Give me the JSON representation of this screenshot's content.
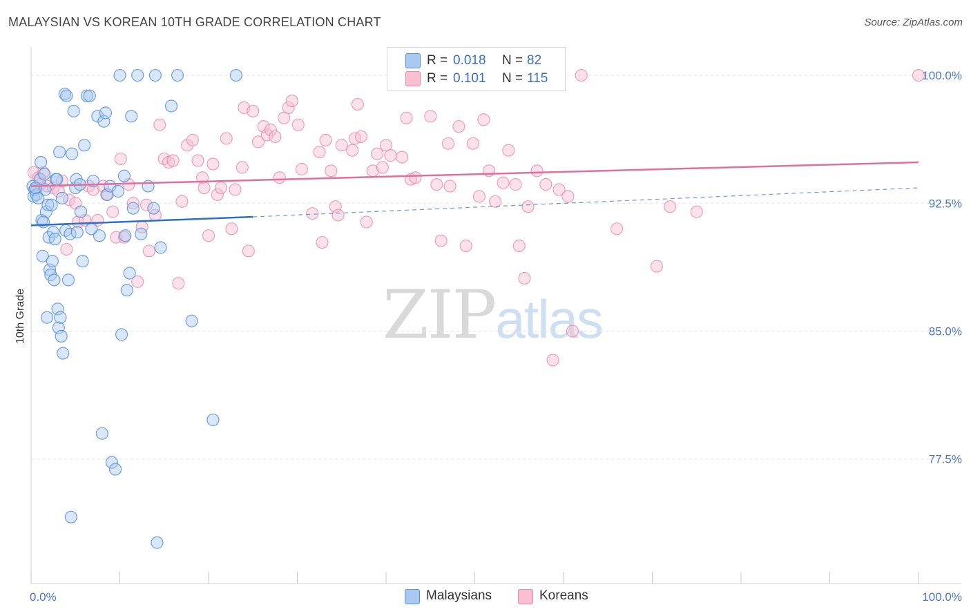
{
  "title": "MALAYSIAN VS KOREAN 10TH GRADE CORRELATION CHART",
  "source": "Source: ZipAtlas.com",
  "watermark": {
    "zip": "ZIP",
    "atlas": "atlas"
  },
  "legend_top": {
    "rows": [
      {
        "r_label": "R =",
        "r_value": "0.018",
        "n_label": "N =",
        "n_value": "82"
      },
      {
        "r_label": "R =",
        "r_value": "0.101",
        "n_label": "N =",
        "n_value": "115"
      }
    ]
  },
  "legend_bottom": {
    "items": [
      {
        "label": "Malaysians"
      },
      {
        "label": "Koreans"
      }
    ]
  },
  "colors": {
    "malaysian_fill": "#a9c9f2",
    "malaysian_stroke": "#5b8fd6",
    "malaysian_line": "#2d6fcc",
    "korean_fill": "#f7bfd0",
    "korean_stroke": "#e98aab",
    "korean_line": "#e0709a",
    "grid": "#e3e3e3",
    "tick_text": "#4a78c4"
  },
  "chart_data": {
    "type": "scatter",
    "title": "MALAYSIAN VS KOREAN 10TH GRADE CORRELATION CHART",
    "xlabel": "",
    "ylabel": "10th Grade",
    "xlim": [
      0,
      100
    ],
    "ylim": [
      70.2,
      101.5
    ],
    "x_tick_labels": [
      "0.0%",
      "100.0%"
    ],
    "y_ticks": [
      {
        "value": 77.5,
        "label": "77.5%"
      },
      {
        "value": 85.0,
        "label": "85.0%"
      },
      {
        "value": 92.5,
        "label": "92.5%"
      },
      {
        "value": 100.0,
        "label": "100.0%"
      }
    ],
    "series": [
      {
        "name": "Malaysians",
        "r": 0.018,
        "n": 82,
        "trend": {
          "x0": 0,
          "y0": 91.2,
          "x1": 25,
          "y1": 91.7,
          "dashed_to_x": 100,
          "dashed_y1": 93.4
        },
        "points": [
          [
            0.2,
            93.5
          ],
          [
            0.3,
            92.9
          ],
          [
            0.4,
            93.3
          ],
          [
            0.6,
            93.0
          ],
          [
            0.8,
            92.8
          ],
          [
            1.0,
            93.9
          ],
          [
            1.2,
            91.5
          ],
          [
            1.3,
            89.4
          ],
          [
            1.5,
            94.2
          ],
          [
            1.6,
            93.3
          ],
          [
            1.7,
            92.0
          ],
          [
            1.8,
            85.8
          ],
          [
            1.9,
            92.4
          ],
          [
            2.0,
            90.5
          ],
          [
            2.1,
            88.6
          ],
          [
            2.2,
            88.3
          ],
          [
            2.3,
            92.4
          ],
          [
            2.4,
            89.1
          ],
          [
            2.5,
            90.8
          ],
          [
            2.6,
            88.0
          ],
          [
            2.7,
            90.4
          ],
          [
            2.8,
            93.9
          ],
          [
            3.0,
            86.3
          ],
          [
            3.1,
            85.2
          ],
          [
            3.2,
            95.5
          ],
          [
            3.3,
            85.8
          ],
          [
            3.4,
            84.7
          ],
          [
            3.6,
            83.7
          ],
          [
            3.8,
            98.9
          ],
          [
            3.9,
            90.9
          ],
          [
            4.0,
            98.8
          ],
          [
            4.2,
            88.0
          ],
          [
            4.4,
            90.7
          ],
          [
            4.6,
            95.4
          ],
          [
            4.8,
            97.9
          ],
          [
            5.0,
            93.4
          ],
          [
            5.1,
            93.9
          ],
          [
            5.2,
            90.8
          ],
          [
            5.5,
            93.6
          ],
          [
            5.6,
            92.0
          ],
          [
            5.8,
            89.1
          ],
          [
            6.0,
            95.9
          ],
          [
            6.3,
            98.8
          ],
          [
            6.6,
            98.8
          ],
          [
            7.0,
            93.8
          ],
          [
            7.5,
            97.6
          ],
          [
            7.7,
            90.6
          ],
          [
            8.0,
            79.0
          ],
          [
            8.2,
            97.3
          ],
          [
            8.4,
            97.8
          ],
          [
            8.6,
            93.0
          ],
          [
            8.9,
            93.5
          ],
          [
            9.1,
            77.3
          ],
          [
            9.5,
            76.9
          ],
          [
            10.0,
            100.0
          ],
          [
            10.2,
            84.8
          ],
          [
            10.5,
            94.1
          ],
          [
            10.6,
            90.6
          ],
          [
            10.8,
            87.4
          ],
          [
            11.1,
            88.4
          ],
          [
            11.3,
            97.6
          ],
          [
            11.5,
            92.2
          ],
          [
            12.0,
            100.0
          ],
          [
            13.2,
            93.5
          ],
          [
            13.8,
            92.2
          ],
          [
            14.0,
            100.0
          ],
          [
            14.2,
            72.6
          ],
          [
            14.6,
            89.9
          ],
          [
            15.8,
            98.2
          ],
          [
            16.5,
            100.0
          ],
          [
            18.1,
            85.6
          ],
          [
            20.5,
            79.8
          ],
          [
            23.1,
            100.0
          ],
          [
            4.5,
            74.1
          ],
          [
            0.5,
            93.4
          ],
          [
            1.1,
            94.9
          ],
          [
            2.9,
            93.9
          ],
          [
            6.8,
            91.0
          ],
          [
            9.8,
            93.2
          ],
          [
            12.4,
            90.7
          ],
          [
            1.4,
            91.4
          ],
          [
            3.5,
            92.8
          ]
        ]
      },
      {
        "name": "Koreans",
        "r": 0.101,
        "n": 115,
        "trend": {
          "x0": 0,
          "y0": 93.5,
          "x1": 100,
          "y1": 94.9
        },
        "points": [
          [
            0.3,
            94.3
          ],
          [
            0.8,
            94.0
          ],
          [
            1.0,
            93.6
          ],
          [
            1.4,
            94.3
          ],
          [
            1.8,
            93.5
          ],
          [
            2.5,
            93.4
          ],
          [
            3.1,
            93.2
          ],
          [
            3.5,
            93.8
          ],
          [
            4.0,
            89.8
          ],
          [
            4.3,
            92.7
          ],
          [
            5.0,
            92.5
          ],
          [
            5.3,
            91.4
          ],
          [
            6.1,
            91.5
          ],
          [
            6.5,
            93.5
          ],
          [
            7.0,
            93.3
          ],
          [
            7.5,
            91.5
          ],
          [
            8.1,
            93.5
          ],
          [
            8.5,
            93.0
          ],
          [
            9.2,
            92.0
          ],
          [
            9.6,
            90.5
          ],
          [
            10.1,
            95.1
          ],
          [
            10.5,
            90.5
          ],
          [
            11.0,
            93.6
          ],
          [
            11.5,
            92.5
          ],
          [
            12.0,
            87.9
          ],
          [
            12.5,
            91.1
          ],
          [
            13.0,
            92.4
          ],
          [
            13.3,
            89.7
          ],
          [
            14.0,
            91.8
          ],
          [
            14.5,
            97.1
          ],
          [
            15.0,
            95.1
          ],
          [
            15.5,
            94.9
          ],
          [
            16.0,
            95.0
          ],
          [
            16.6,
            87.8
          ],
          [
            17.0,
            92.6
          ],
          [
            17.6,
            95.9
          ],
          [
            18.2,
            96.2
          ],
          [
            18.8,
            95.0
          ],
          [
            19.3,
            94.0
          ],
          [
            19.5,
            93.4
          ],
          [
            20.0,
            90.6
          ],
          [
            20.5,
            94.8
          ],
          [
            21.0,
            93.0
          ],
          [
            21.4,
            93.4
          ],
          [
            22.0,
            96.3
          ],
          [
            22.6,
            91.0
          ],
          [
            23.0,
            93.3
          ],
          [
            23.8,
            94.6
          ],
          [
            24.0,
            98.1
          ],
          [
            24.5,
            89.7
          ],
          [
            25.0,
            97.9
          ],
          [
            25.6,
            96.1
          ],
          [
            26.2,
            97.0
          ],
          [
            26.6,
            96.5
          ],
          [
            27.0,
            96.8
          ],
          [
            27.5,
            96.4
          ],
          [
            28.0,
            94.0
          ],
          [
            28.5,
            97.5
          ],
          [
            29.0,
            98.1
          ],
          [
            29.4,
            98.5
          ],
          [
            30.1,
            97.1
          ],
          [
            30.5,
            94.5
          ],
          [
            31.7,
            91.9
          ],
          [
            32.5,
            95.5
          ],
          [
            32.8,
            90.2
          ],
          [
            33.2,
            96.2
          ],
          [
            33.8,
            94.4
          ],
          [
            34.3,
            92.3
          ],
          [
            34.6,
            91.8
          ],
          [
            35.0,
            95.9
          ],
          [
            36.2,
            95.6
          ],
          [
            36.8,
            98.3
          ],
          [
            36.5,
            96.3
          ],
          [
            37.2,
            96.4
          ],
          [
            37.8,
            91.4
          ],
          [
            38.5,
            94.4
          ],
          [
            39.0,
            95.4
          ],
          [
            39.6,
            94.6
          ],
          [
            40.0,
            95.9
          ],
          [
            40.5,
            95.3
          ],
          [
            41.2,
            100.0
          ],
          [
            41.8,
            95.2
          ],
          [
            42.3,
            97.5
          ],
          [
            42.8,
            93.9
          ],
          [
            43.3,
            94.0
          ],
          [
            45.0,
            97.6
          ],
          [
            45.7,
            93.6
          ],
          [
            46.2,
            90.3
          ],
          [
            47.0,
            96.0
          ],
          [
            47.2,
            93.5
          ],
          [
            48.2,
            97.0
          ],
          [
            49.0,
            90.0
          ],
          [
            49.8,
            96.0
          ],
          [
            50.5,
            92.9
          ],
          [
            51.0,
            97.4
          ],
          [
            51.6,
            94.4
          ],
          [
            52.3,
            92.6
          ],
          [
            53.2,
            93.7
          ],
          [
            53.8,
            95.6
          ],
          [
            54.6,
            93.6
          ],
          [
            55.0,
            90.0
          ],
          [
            55.6,
            88.1
          ],
          [
            56.0,
            92.3
          ],
          [
            57.0,
            94.4
          ],
          [
            58.0,
            93.6
          ],
          [
            59.5,
            93.3
          ],
          [
            60.5,
            92.9
          ],
          [
            61.0,
            85.0
          ],
          [
            58.8,
            83.3
          ],
          [
            62.0,
            100.0
          ],
          [
            66.0,
            91.0
          ],
          [
            70.5,
            88.8
          ],
          [
            72.0,
            92.3
          ],
          [
            75.0,
            92.0
          ],
          [
            100.0,
            100.0
          ]
        ]
      }
    ]
  }
}
